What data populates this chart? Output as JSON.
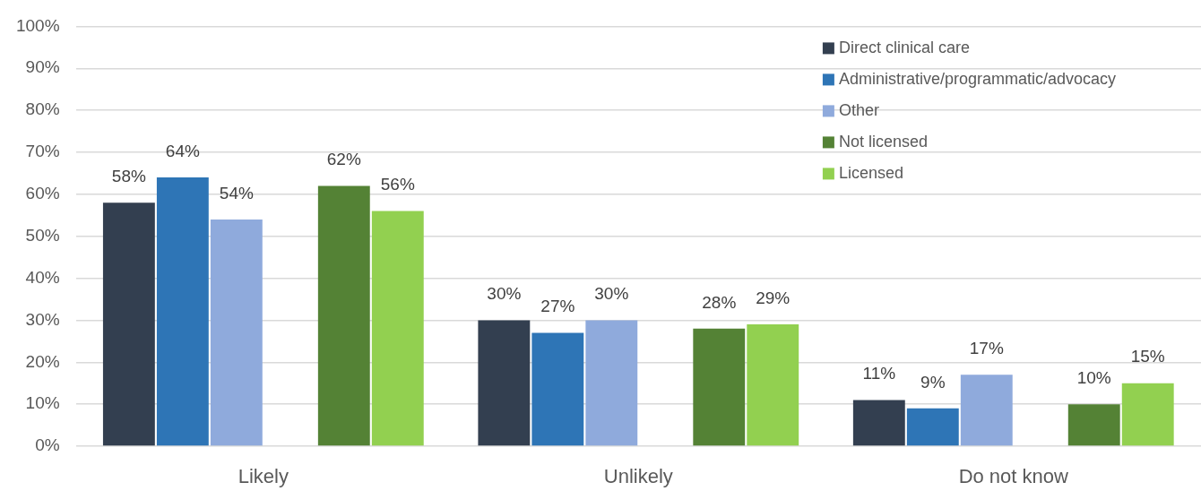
{
  "chart_data": {
    "type": "bar",
    "categories": [
      "Likely",
      "Unlikely",
      "Do not know"
    ],
    "series": [
      {
        "name": "Direct clinical care",
        "color": "#333f50",
        "values": [
          58,
          30,
          11
        ],
        "value_labels": [
          "58%",
          "30%",
          "11%"
        ]
      },
      {
        "name": "Administrative/programmatic/advocacy",
        "color": "#2e75b6",
        "values": [
          64,
          27,
          9
        ],
        "value_labels": [
          "64%",
          "27%",
          "9%"
        ]
      },
      {
        "name": "Other",
        "color": "#8faadc",
        "values": [
          54,
          30,
          17
        ],
        "value_labels": [
          "54%",
          "30%",
          "17%"
        ]
      },
      {
        "values": [
          null,
          null,
          null
        ]
      },
      {
        "name": "Not licensed",
        "color": "#548235",
        "values": [
          62,
          28,
          10
        ],
        "value_labels": [
          "62%",
          "28%",
          "10%"
        ]
      },
      {
        "name": "Licensed",
        "color": "#92d050",
        "values": [
          56,
          29,
          15
        ],
        "value_labels": [
          "56%",
          "29%",
          "15%"
        ]
      }
    ],
    "ylim": [
      0,
      100
    ],
    "yticks": [
      {
        "value": 0,
        "label": "0%"
      },
      {
        "value": 10,
        "label": "10%"
      },
      {
        "value": 20,
        "label": "20%"
      },
      {
        "value": 30,
        "label": "30%"
      },
      {
        "value": 40,
        "label": "40%"
      },
      {
        "value": 50,
        "label": "50%"
      },
      {
        "value": 60,
        "label": "60%"
      },
      {
        "value": 70,
        "label": "70%"
      },
      {
        "value": 80,
        "label": "80%"
      },
      {
        "value": 90,
        "label": "90%"
      },
      {
        "value": 100,
        "label": "100%"
      }
    ],
    "grid": "y",
    "legend": "top right"
  }
}
